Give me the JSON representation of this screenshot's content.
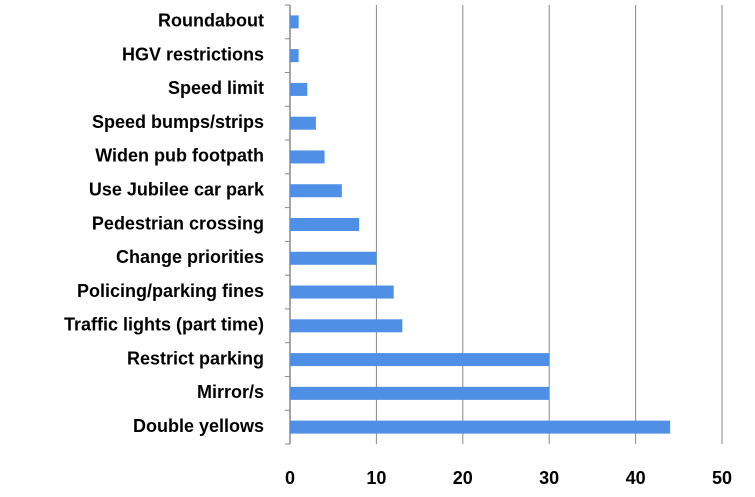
{
  "chart_data": {
    "type": "bar",
    "orientation": "horizontal",
    "categories": [
      "Roundabout",
      "HGV restrictions",
      "Speed limit",
      "Speed bumps/strips",
      "Widen pub footpath",
      "Use Jubilee car park",
      "Pedestrian crossing",
      "Change priorities",
      "Policing/parking fines",
      "Traffic lights (part time)",
      "Restrict parking",
      "Mirror/s",
      "Double yellows"
    ],
    "values": [
      1,
      1,
      2,
      3,
      4,
      6,
      8,
      10,
      12,
      13,
      30,
      30,
      44
    ],
    "color": "#4f8fe6",
    "xlim": [
      0,
      50
    ],
    "xticks": [
      0,
      10,
      20,
      30,
      40,
      50
    ],
    "grid": true
  }
}
